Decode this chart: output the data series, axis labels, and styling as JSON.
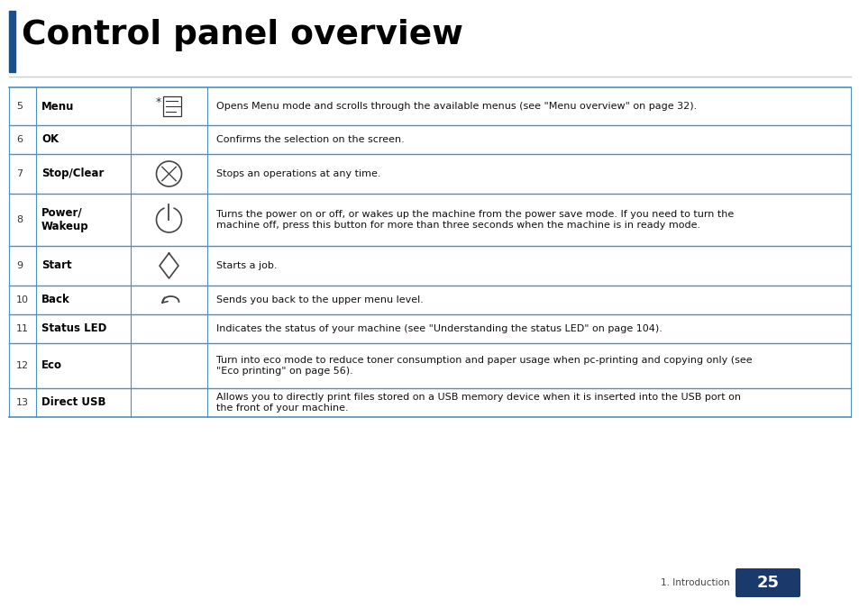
{
  "title": "Control panel overview",
  "title_fontsize": 26,
  "title_color": "#000000",
  "page_label": "1. Introduction",
  "page_number": "25",
  "page_num_bg": "#1a3a6b",
  "table_line_color": "#4a90c4",
  "rows": [
    {
      "num": "5",
      "name": "Menu",
      "icon_type": "menu",
      "description": "Opens Menu mode and scrolls through the available menus (see \"Menu overview\" on page 32)."
    },
    {
      "num": "6",
      "name": "OK",
      "icon_type": "",
      "description": "Confirms the selection on the screen."
    },
    {
      "num": "7",
      "name": "Stop/Clear",
      "icon_type": "stop",
      "description": "Stops an operations at any time."
    },
    {
      "num": "8",
      "name": "Power/\nWakeup",
      "icon_type": "power",
      "description": "Turns the power on or off, or wakes up the machine from the power save mode. If you need to turn the machine off, press this button for more than three seconds when the machine is in ready mode."
    },
    {
      "num": "9",
      "name": "Start",
      "icon_type": "start",
      "description": "Starts a job."
    },
    {
      "num": "10",
      "name": "Back",
      "icon_type": "back",
      "description": "Sends you back to the upper menu level."
    },
    {
      "num": "11",
      "name": "Status LED",
      "icon_type": "",
      "description": "Indicates the status of your machine (see \"Understanding the status LED\" on page 104)."
    },
    {
      "num": "12",
      "name": "Eco",
      "icon_type": "",
      "description": "Turn into eco mode to reduce toner consumption and paper usage when pc-printing and copying only (see \"Eco printing\" on page 56)."
    },
    {
      "num": "13",
      "name": "Direct USB",
      "icon_type": "",
      "description": "Allows you to directly print files stored on a USB memory device when it is inserted into the USB port on the front of your machine."
    }
  ],
  "background_color": "#ffffff"
}
